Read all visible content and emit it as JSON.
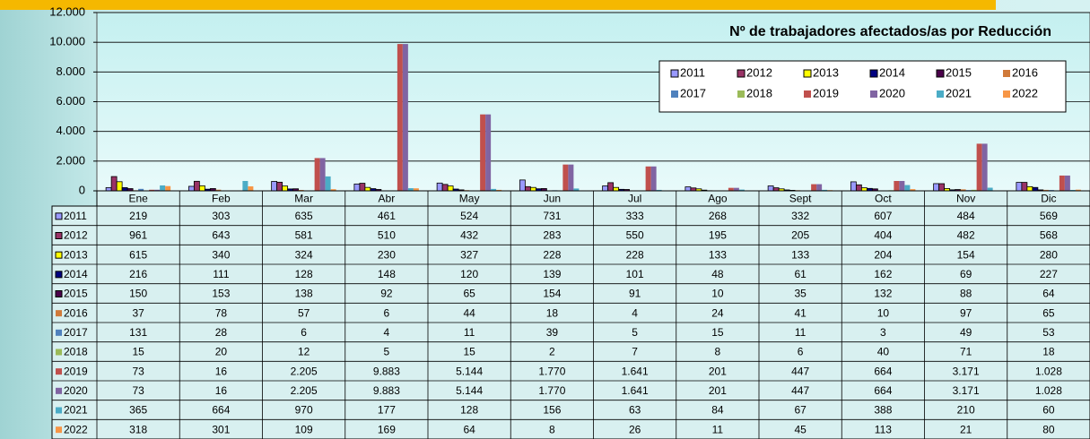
{
  "chart_data": {
    "type": "bar",
    "title": "Nº de trabajadores afectados/as por Reducción",
    "categories": [
      "Ene",
      "Feb",
      "Mar",
      "Abr",
      "May",
      "Jun",
      "Jul",
      "Ago",
      "Sept",
      "Oct",
      "Nov",
      "Dic"
    ],
    "ylim": [
      0,
      12000
    ],
    "yticks": [
      0,
      {
        "value": 2000,
        "label": "2.000"
      },
      {
        "value": 4000,
        "label": "4.000"
      },
      {
        "value": 6000,
        "label": "6.000"
      },
      {
        "value": 8000,
        "label": "8.000"
      },
      {
        "value": 10000,
        "label": "10.000"
      },
      {
        "value": 12000,
        "label": "12.000"
      }
    ],
    "grid": true,
    "legend": "upper right",
    "series": [
      {
        "name": "2011",
        "color": "#9999ff",
        "values": [
          219,
          303,
          635,
          461,
          524,
          731,
          333,
          268,
          332,
          607,
          484,
          569
        ]
      },
      {
        "name": "2012",
        "color": "#993366",
        "values": [
          961,
          643,
          581,
          510,
          432,
          283,
          550,
          195,
          205,
          404,
          482,
          568
        ]
      },
      {
        "name": "2013",
        "color": "#ffff00",
        "values": [
          615,
          340,
          324,
          230,
          327,
          228,
          228,
          133,
          133,
          204,
          154,
          280
        ]
      },
      {
        "name": "2014",
        "color": "#000080",
        "values": [
          216,
          111,
          128,
          148,
          120,
          139,
          101,
          48,
          61,
          162,
          69,
          227
        ]
      },
      {
        "name": "2015",
        "color": "#4b004b",
        "values": [
          150,
          153,
          138,
          92,
          65,
          154,
          91,
          10,
          35,
          132,
          88,
          64
        ]
      },
      {
        "name": "2016",
        "color": "#d07a3a",
        "values": [
          37,
          78,
          57,
          6,
          44,
          18,
          4,
          24,
          41,
          10,
          97,
          65
        ]
      },
      {
        "name": "2017",
        "color": "#4f81bd",
        "values": [
          131,
          28,
          6,
          4,
          11,
          39,
          5,
          15,
          11,
          3,
          49,
          53
        ]
      },
      {
        "name": "2018",
        "color": "#9bbb59",
        "values": [
          15,
          20,
          12,
          5,
          15,
          2,
          7,
          8,
          6,
          40,
          71,
          18
        ]
      },
      {
        "name": "2019",
        "color": "#c0504d",
        "values": [
          73,
          16,
          2205,
          9883,
          5144,
          1770,
          1641,
          201,
          447,
          664,
          3171,
          1028
        ],
        "value_labels": [
          "73",
          "16",
          "2.205",
          "9.883",
          "5.144",
          "1.770",
          "1.641",
          "201",
          "447",
          "664",
          "3.171",
          "1.028"
        ]
      },
      {
        "name": "2020",
        "color": "#8064a2",
        "values": [
          73,
          16,
          2205,
          9883,
          5144,
          1770,
          1641,
          201,
          447,
          664,
          3171,
          1028
        ],
        "value_labels": [
          "73",
          "16",
          "2.205",
          "9.883",
          "5.144",
          "1.770",
          "1.641",
          "201",
          "447",
          "664",
          "3.171",
          "1.028"
        ]
      },
      {
        "name": "2021",
        "color": "#4bacc6",
        "values": [
          365,
          664,
          970,
          177,
          128,
          156,
          63,
          84,
          67,
          388,
          210,
          60
        ]
      },
      {
        "name": "2022",
        "color": "#f79646",
        "values": [
          318,
          301,
          109,
          169,
          64,
          8,
          26,
          11,
          45,
          113,
          21,
          80
        ]
      }
    ]
  }
}
